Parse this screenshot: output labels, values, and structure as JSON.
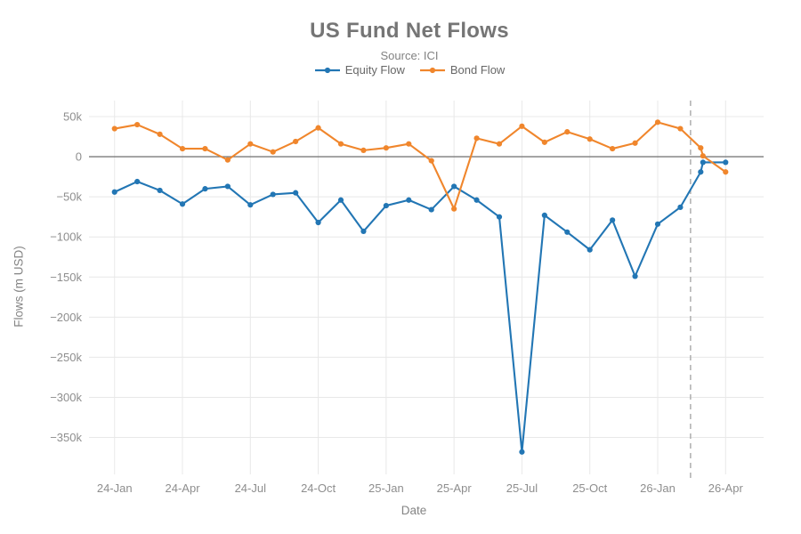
{
  "chart_data": {
    "type": "line",
    "title": "US Fund Net Flows",
    "subtitle": "Source: ICI",
    "xlabel": "Date",
    "ylabel": "Flows (m USD)",
    "legend_position": "top-center",
    "grid": true,
    "grid_color": "#e8e8e8",
    "zero_line_color": "#7b7b7b",
    "background": "#ffffff",
    "x_unit": "months since 24-Jan (0 = 24-Jan); fractional x = partial-month points near 26-Mar",
    "value_unit": "k (thousands of m USD), matching axis tick labels",
    "xlim": [
      -1.13,
      28.68
    ],
    "ylim": [
      -396,
      70
    ],
    "dashed_vline": {
      "x": 25.45,
      "color": "#b3b3b3",
      "style": "dashed"
    },
    "yticks": [
      {
        "v": 50,
        "label": "50k"
      },
      {
        "v": 0,
        "label": "0"
      },
      {
        "v": -50,
        "label": "−50k"
      },
      {
        "v": -100,
        "label": "−100k"
      },
      {
        "v": -150,
        "label": "−150k"
      },
      {
        "v": -200,
        "label": "−200k"
      },
      {
        "v": -250,
        "label": "−250k"
      },
      {
        "v": -300,
        "label": "−300k"
      },
      {
        "v": -350,
        "label": "−350k"
      }
    ],
    "xticks": [
      {
        "x": 0,
        "label": "24-Jan"
      },
      {
        "x": 3,
        "label": "24-Apr"
      },
      {
        "x": 6,
        "label": "24-Jul"
      },
      {
        "x": 9,
        "label": "24-Oct"
      },
      {
        "x": 12,
        "label": "25-Jan"
      },
      {
        "x": 15,
        "label": "25-Apr"
      },
      {
        "x": 18,
        "label": "25-Jul"
      },
      {
        "x": 21,
        "label": "25-Oct"
      },
      {
        "x": 24,
        "label": "26-Jan"
      },
      {
        "x": 27,
        "label": "26-Apr"
      }
    ],
    "series": [
      {
        "name": "Equity Flow",
        "color": "#2276b4",
        "x": [
          0,
          1,
          2,
          3,
          4,
          5,
          6,
          7,
          8,
          9,
          10,
          11,
          12,
          13,
          14,
          15,
          16,
          17,
          18,
          19,
          20,
          21,
          22,
          23,
          24,
          25,
          25.9,
          26.0,
          27
        ],
        "values": [
          -44,
          -31,
          -42,
          -59,
          -40,
          -37,
          -60,
          -47,
          -45,
          -82,
          -54,
          -93,
          -61,
          -54,
          -66,
          -37,
          -54,
          -75,
          -368,
          -73,
          -94,
          -116,
          -79,
          -149,
          -84,
          -63,
          -19,
          -7,
          -7
        ]
      },
      {
        "name": "Bond Flow",
        "color": "#f0862c",
        "x": [
          0,
          1,
          2,
          3,
          4,
          5,
          6,
          7,
          8,
          9,
          10,
          11,
          12,
          13,
          14,
          15,
          16,
          17,
          18,
          19,
          20,
          21,
          22,
          23,
          24,
          25,
          25.9,
          26.0,
          27
        ],
        "values": [
          35,
          40,
          28,
          10,
          10,
          -4,
          16,
          6,
          19,
          36,
          16,
          8,
          11,
          16,
          -5,
          -65,
          23,
          16,
          38,
          18,
          31,
          22,
          10,
          17,
          43,
          35,
          11,
          1,
          -19
        ]
      }
    ]
  }
}
